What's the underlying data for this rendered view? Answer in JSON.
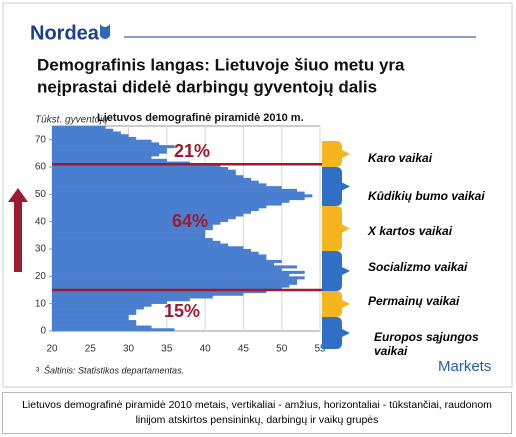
{
  "header": {
    "logo": "Nordea",
    "title_lines": [
      "Demografinis langas: Lietuvoje šiuo metu yra",
      "neįprastai didelė darbingų gyventojų dalis"
    ]
  },
  "chart_data": {
    "type": "bar",
    "orientation": "horizontal",
    "title": "Lietuvos demografinė piramidė 2010 m.",
    "y_label": "Tūkst. gyventojų",
    "x": [
      0,
      1,
      2,
      3,
      4,
      5,
      6,
      7,
      8,
      9,
      10,
      11,
      12,
      13,
      14,
      15,
      16,
      17,
      18,
      19,
      20,
      21,
      22,
      23,
      24,
      25,
      26,
      27,
      28,
      29,
      30,
      31,
      32,
      33,
      34,
      35,
      36,
      37,
      38,
      39,
      40,
      41,
      42,
      43,
      44,
      45,
      46,
      47,
      48,
      49,
      50,
      51,
      52,
      53,
      54,
      55,
      56,
      57,
      58,
      59,
      60,
      61,
      62,
      63,
      64,
      65,
      66,
      67,
      68,
      69,
      70,
      71,
      72,
      73,
      74
    ],
    "values": [
      36,
      33,
      31,
      31,
      30,
      30,
      31,
      31,
      32,
      33,
      35,
      38,
      41,
      45,
      48,
      50,
      51,
      52,
      52,
      53,
      51,
      53,
      50,
      52,
      49,
      50,
      48,
      48,
      47,
      46,
      45,
      43,
      42,
      41,
      40,
      40,
      40,
      41,
      41,
      42,
      43,
      44,
      45,
      46,
      47,
      48,
      50,
      51,
      53,
      54,
      53,
      52,
      50,
      48,
      47,
      46,
      45,
      44,
      44,
      43,
      42,
      38,
      35,
      33,
      34,
      35,
      35,
      36,
      34,
      33,
      31,
      30,
      29,
      28,
      27
    ],
    "color": "#4a7fd0",
    "xlim": [
      20,
      55
    ],
    "xticks": [
      20,
      25,
      30,
      35,
      40,
      45,
      50,
      55
    ],
    "ylim": [
      0,
      75
    ],
    "yticks": [
      0,
      10,
      20,
      30,
      40,
      50,
      60,
      70
    ],
    "grid": true,
    "reference_lines": [
      15,
      61
    ],
    "reference_color": "#9b1b30",
    "annotations": [
      "21%",
      "64%",
      "15%"
    ]
  },
  "brackets": [
    "Karo vaikai",
    "Kūdikių bumo vaikai",
    "X kartos vaikai",
    "Socializmo vaikai",
    "Permainų vaikai",
    "Europos  sąjungos vaikai"
  ],
  "footer": {
    "slide_number": "3",
    "source": "Šaltinis: Statistikos departamentas.",
    "brand": "Markets"
  },
  "caption": "Lietuvos demografinė piramidė 2010 metais, vertikaliai - amžius, horizontaliai - tūkstančiai, raudonom linijom atskirtos pensininkų, darbingų ir vaikų grupės"
}
